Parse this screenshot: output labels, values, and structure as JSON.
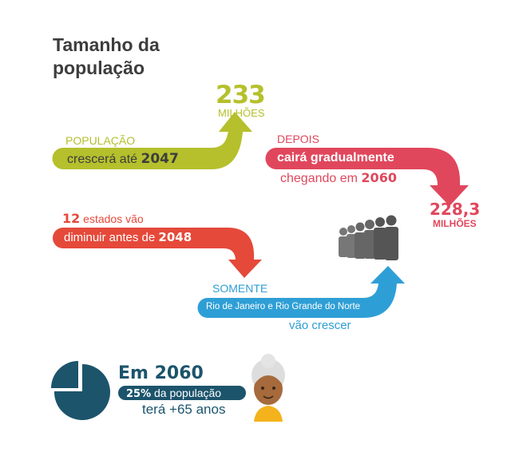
{
  "title": "Tamanho da população",
  "colors": {
    "green": "#b5c02c",
    "pink": "#e0475c",
    "red": "#e5493a",
    "blue": "#2e9fd6",
    "teal": "#1c546c",
    "text": "#3d3d3d"
  },
  "peak": {
    "label": "POPULAÇÃO",
    "text": "crescerá até",
    "year": "2047",
    "value": "233",
    "unit": "MILHÕES"
  },
  "decline": {
    "label": "DEPOIS",
    "text": "cairá gradualmente",
    "text2": "chegando em",
    "year": "2060",
    "value": "228,3",
    "unit": "MILHÕES"
  },
  "states_decline": {
    "count": "12",
    "label": "estados vão",
    "text": "diminuir antes de",
    "year": "2048"
  },
  "states_grow": {
    "label": "SOMENTE",
    "text": "Rio de Janeiro e Rio Grande do Norte",
    "text2": "vão crescer"
  },
  "elderly": {
    "title": "Em 2060",
    "percent": "25%",
    "text": "da população",
    "text2": "terá +65 anos",
    "pie_fraction": 0.25
  },
  "icons": [
    "people-group-icon",
    "pie-chart-icon",
    "elderly-woman-icon"
  ]
}
